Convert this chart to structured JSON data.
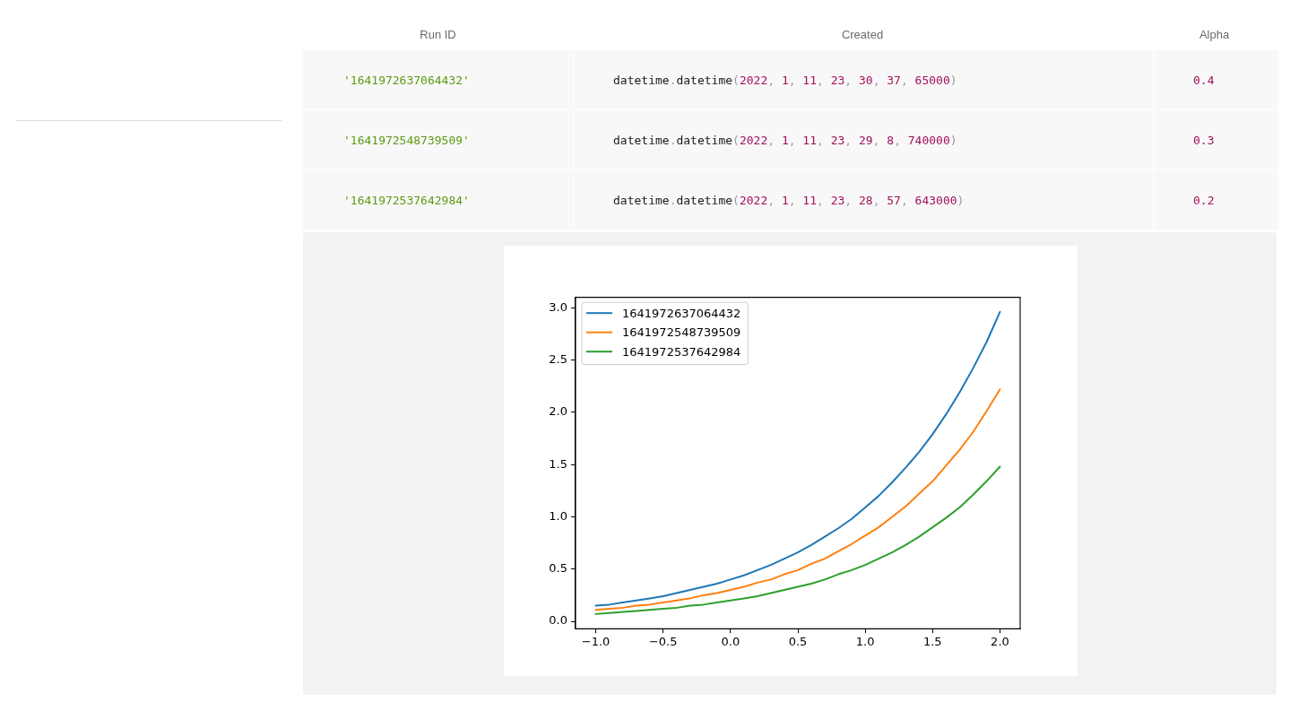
{
  "chart_data": [
    {
      "type": "other",
      "annotations": [
        "Run ID",
        "Created",
        "Alpha",
        "'1641972637064432'",
        "datetime.datetime(2022, 1, 11, 23, 30, 37, 65000)",
        "0.4",
        "'1641972548739509'",
        "datetime.datetime(2022, 1, 11, 23, 29, 8, 740000)",
        "0.3",
        "'1641972537642984'",
        "datetime.datetime(2022, 1, 11, 23, 28, 57, 643000)",
        "0.2"
      ]
    },
    {
      "type": "line",
      "legend": "top left",
      "x": [
        -1.0,
        -0.9,
        -0.8,
        -0.7,
        -0.6,
        -0.5,
        -0.4,
        -0.3,
        -0.2,
        -0.1,
        0.0,
        0.1,
        0.2,
        0.3,
        0.4,
        0.5,
        0.6,
        0.7,
        0.8,
        0.9,
        1.0,
        1.1,
        1.2,
        1.3,
        1.4,
        1.5,
        1.6,
        1.7,
        1.8,
        1.9,
        2.0
      ],
      "series": [
        {
          "name": "1641972637064432",
          "color": "#1f77b4",
          "values": [
            0.15,
            0.16,
            0.18,
            0.2,
            0.22,
            0.24,
            0.27,
            0.3,
            0.33,
            0.36,
            0.4,
            0.44,
            0.49,
            0.54,
            0.6,
            0.66,
            0.73,
            0.81,
            0.89,
            0.98,
            1.09,
            1.2,
            1.33,
            1.47,
            1.62,
            1.79,
            1.98,
            2.19,
            2.42,
            2.67,
            2.96
          ]
        },
        {
          "name": "1641972548739509",
          "color": "#ff7f0e",
          "values": [
            0.11,
            0.12,
            0.13,
            0.15,
            0.16,
            0.18,
            0.2,
            0.22,
            0.25,
            0.27,
            0.3,
            0.33,
            0.37,
            0.4,
            0.45,
            0.49,
            0.55,
            0.6,
            0.67,
            0.74,
            0.82,
            0.9,
            1.0,
            1.1,
            1.22,
            1.34,
            1.49,
            1.64,
            1.81,
            2.01,
            2.22
          ]
        },
        {
          "name": "1641972537642984",
          "color": "#2ca02c",
          "values": [
            0.07,
            0.08,
            0.09,
            0.1,
            0.11,
            0.12,
            0.13,
            0.15,
            0.16,
            0.18,
            0.2,
            0.22,
            0.24,
            0.27,
            0.3,
            0.33,
            0.36,
            0.4,
            0.45,
            0.49,
            0.54,
            0.6,
            0.66,
            0.73,
            0.81,
            0.9,
            0.99,
            1.09,
            1.21,
            1.34,
            1.48
          ]
        }
      ],
      "xlim": [
        -1.15,
        2.15
      ],
      "xticks": [
        {
          "value": -1,
          "label": "−1.0"
        },
        {
          "value": -0.5,
          "label": "−0.5"
        },
        {
          "value": 0,
          "label": "0.0"
        },
        {
          "value": 0.5,
          "label": "0.5"
        },
        {
          "value": 1,
          "label": "1.0"
        },
        {
          "value": 1.5,
          "label": "1.5"
        },
        {
          "value": 2,
          "label": "2.0"
        }
      ],
      "ylim": [
        -0.07,
        3.1
      ],
      "yticks": [
        {
          "value": 0,
          "label": "0.0"
        },
        {
          "value": 0.5,
          "label": "0.5"
        },
        {
          "value": 1,
          "label": "1.0"
        },
        {
          "value": 1.5,
          "label": "1.5"
        },
        {
          "value": 2,
          "label": "2.0"
        },
        {
          "value": 2.5,
          "label": "2.5"
        },
        {
          "value": 3,
          "label": "3.0"
        }
      ]
    }
  ]
}
